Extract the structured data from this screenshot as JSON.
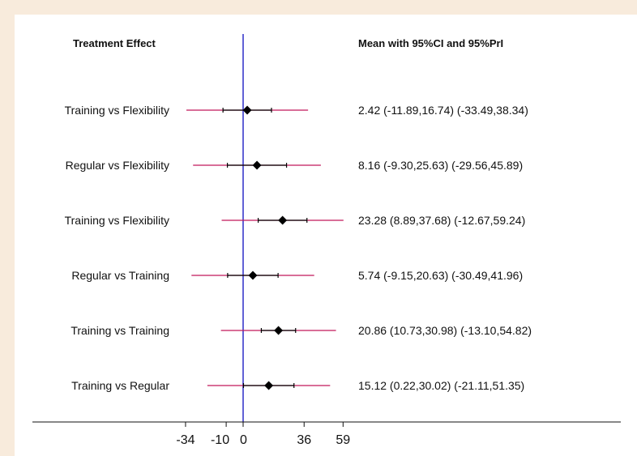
{
  "header": {
    "left": "Treatment Effect",
    "right": "Mean with 95%CI and 95%PrI"
  },
  "chart_data": {
    "type": "forest",
    "xticks": [
      -34,
      -10,
      0,
      36,
      59
    ],
    "xtick_labels": [
      "-34",
      "-10",
      "0",
      "36",
      "59"
    ],
    "reference_line": 0,
    "colors": {
      "reference": "#3a3acc",
      "prediction_interval": "#c2185b",
      "confidence_interval": "#000000",
      "point": "#000000"
    },
    "rows": [
      {
        "label": "Training vs Flexibility",
        "mean": 2.42,
        "ci": [
          -11.89,
          16.74
        ],
        "pi": [
          -33.49,
          38.34
        ],
        "text": "2.42 (-11.89,16.74)  (-33.49,38.34)"
      },
      {
        "label": "Regular vs Flexibility",
        "mean": 8.16,
        "ci": [
          -9.3,
          25.63
        ],
        "pi": [
          -29.56,
          45.89
        ],
        "text": "8.16 (-9.30,25.63)  (-29.56,45.89)"
      },
      {
        "label": "Training vs Flexibility",
        "mean": 23.28,
        "ci": [
          8.89,
          37.68
        ],
        "pi": [
          -12.67,
          59.24
        ],
        "text": "23.28 (8.89,37.68)  (-12.67,59.24)"
      },
      {
        "label": "Regular vs Training",
        "mean": 5.74,
        "ci": [
          -9.15,
          20.63
        ],
        "pi": [
          -30.49,
          41.96
        ],
        "text": "5.74 (-9.15,20.63)  (-30.49,41.96)"
      },
      {
        "label": "Training vs Training",
        "mean": 20.86,
        "ci": [
          10.73,
          30.98
        ],
        "pi": [
          -13.1,
          54.82
        ],
        "text": "20.86 (10.73,30.98)  (-13.10,54.82)"
      },
      {
        "label": "Training vs Regular",
        "mean": 15.12,
        "ci": [
          0.22,
          30.02
        ],
        "pi": [
          -21.11,
          51.35
        ],
        "text": "15.12 (0.22,30.02)  (-21.11,51.35)"
      }
    ]
  }
}
